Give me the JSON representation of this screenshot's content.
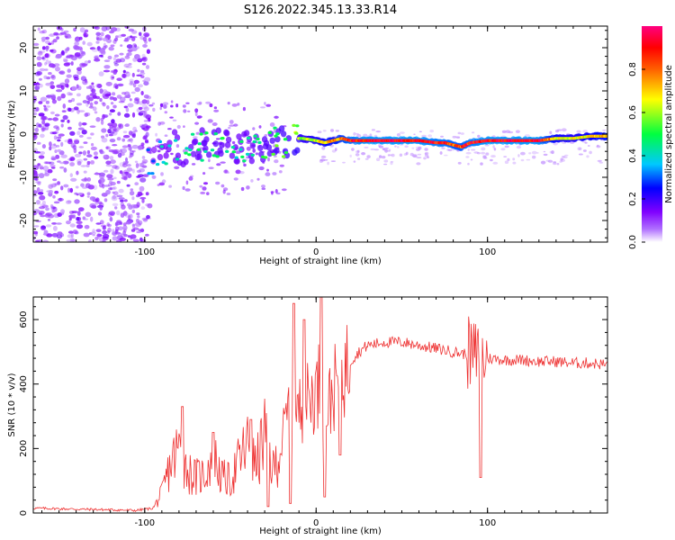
{
  "title": "S126.2022.345.13.33.R14",
  "chart_data": [
    {
      "type": "heatmap",
      "xlabel": "Height of straight line (km)",
      "ylabel": "Frequency (Hz)",
      "xlim": [
        -165,
        170
      ],
      "ylim": [
        -25,
        25
      ],
      "xticks": [
        -100,
        0,
        100
      ],
      "yticks": [
        -20,
        -10,
        0,
        10,
        20
      ],
      "colorbar": {
        "label": "Normalized spectral amplitude",
        "range": [
          0,
          1
        ],
        "ticks": [
          "0.0",
          "0.2",
          "0.4",
          "0.6",
          "0.8"
        ],
        "colors": [
          "#ffffff",
          "#8000ff",
          "#0000ff",
          "#00c8ff",
          "#00ff00",
          "#ffff00",
          "#ff0000",
          "#ff0080"
        ]
      },
      "ridge": {
        "x": [
          -98,
          -90,
          -80,
          -70,
          -60,
          -50,
          -40,
          -30,
          -20,
          -12,
          -8,
          0,
          5,
          10,
          15,
          20,
          30,
          50,
          60,
          70,
          75,
          80,
          85,
          90,
          100,
          110,
          120,
          130,
          140,
          150,
          160,
          170
        ],
        "freq_hz": [
          -6,
          -5,
          -3,
          -3,
          -3,
          -3,
          -3,
          -2,
          -2,
          -1,
          -1,
          -1.5,
          -2,
          -1.5,
          -1,
          -1.5,
          -1.5,
          -1.5,
          -1.5,
          -2,
          -2,
          -2.5,
          -3,
          -2,
          -1.5,
          -1.5,
          -1.5,
          -1.5,
          -1,
          -1,
          -0.5,
          -0.5
        ],
        "amplitude": [
          0.3,
          0.4,
          0.45,
          0.45,
          0.5,
          0.45,
          0.45,
          0.5,
          0.55,
          0.6,
          0.6,
          0.65,
          0.7,
          0.75,
          0.8,
          0.9,
          0.95,
          0.95,
          0.95,
          0.9,
          0.9,
          0.85,
          0.85,
          0.9,
          0.95,
          0.95,
          0.95,
          0.95,
          0.7,
          0.65,
          0.7,
          0.75
        ]
      }
    },
    {
      "type": "line",
      "xlabel": "Height of straight line (km)",
      "ylabel": "SNR (10 * v/v)",
      "xlim": [
        -165,
        170
      ],
      "ylim": [
        0,
        670
      ],
      "xticks": [
        -100,
        0,
        100
      ],
      "yticks": [
        0,
        200,
        400,
        600
      ],
      "series": [
        {
          "color": "#ee3030",
          "x": [
            -165,
            -140,
            -120,
            -105,
            -95,
            -90,
            -85,
            -80,
            -75,
            -70,
            -65,
            -60,
            -55,
            -50,
            -45,
            -40,
            -35,
            -30,
            -25,
            -20,
            -15,
            -13,
            -10,
            -5,
            0,
            3,
            5,
            10,
            15,
            20,
            25,
            30,
            40,
            50,
            60,
            70,
            80,
            90,
            95,
            100,
            110,
            120,
            130,
            140,
            150,
            160,
            170
          ],
          "y": [
            15,
            12,
            10,
            8,
            15,
            60,
            150,
            200,
            130,
            110,
            120,
            180,
            110,
            100,
            160,
            210,
            140,
            250,
            130,
            220,
            350,
            270,
            320,
            350,
            380,
            420,
            300,
            380,
            430,
            470,
            500,
            520,
            530,
            530,
            520,
            510,
            500,
            490,
            480,
            480,
            475,
            475,
            470,
            470,
            465,
            465,
            460
          ],
          "peaks": [
            {
              "x": -78,
              "y": 330
            },
            {
              "x": -60,
              "y": 250
            },
            {
              "x": -38,
              "y": 290
            },
            {
              "x": -13,
              "y": 650
            },
            {
              "x": -7,
              "y": 600
            },
            {
              "x": 3,
              "y": 670
            },
            {
              "x": 96,
              "y": 620
            }
          ],
          "dips": [
            {
              "x": -28,
              "y": 20
            },
            {
              "x": -15,
              "y": 30
            },
            {
              "x": 5,
              "y": 50
            },
            {
              "x": 14,
              "y": 180
            },
            {
              "x": 96,
              "y": 110
            }
          ]
        }
      ]
    }
  ]
}
